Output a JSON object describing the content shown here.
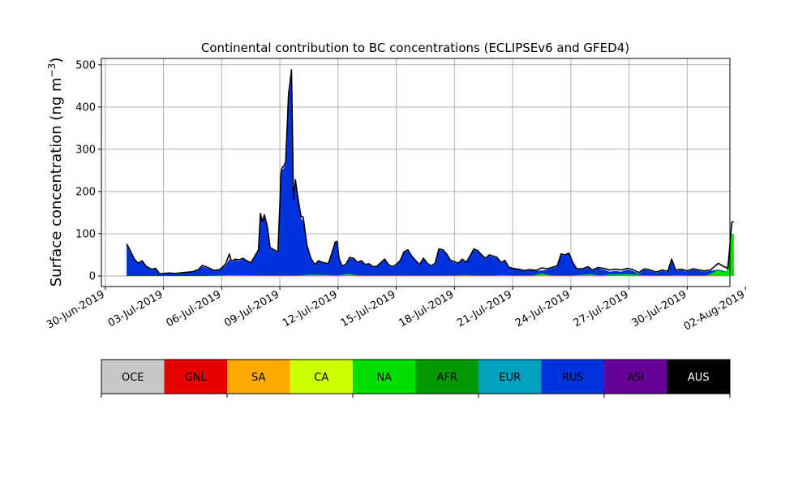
{
  "chart_data": {
    "type": "area",
    "title": "Continental contribution to BC concentrations (ECLIPSEv6 and GFED4)",
    "ylabel": "Surface concentration (ng m",
    "ylabel_exp": "−3",
    "ylabel_suffix": ")",
    "xlim": [
      -0.2,
      32.2
    ],
    "ylim": [
      -25,
      515
    ],
    "yticks": [
      0,
      100,
      200,
      300,
      400,
      500
    ],
    "xticks": [
      {
        "x": 0,
        "label": "30-Jun-2019"
      },
      {
        "x": 3,
        "label": "03-Jul-2019"
      },
      {
        "x": 6,
        "label": "06-Jul-2019"
      },
      {
        "x": 9,
        "label": "09-Jul-2019"
      },
      {
        "x": 12,
        "label": "12-Jul-2019"
      },
      {
        "x": 15,
        "label": "15-Jul-2019"
      },
      {
        "x": 18,
        "label": "18-Jul-2019"
      },
      {
        "x": 21,
        "label": "21-Jul-2019"
      },
      {
        "x": 24,
        "label": "24-Jul-2019"
      },
      {
        "x": 27,
        "label": "27-Jul-2019"
      },
      {
        "x": 30,
        "label": "30-Jul-2019"
      },
      {
        "x": 33,
        "label": "02-Aug-2019"
      }
    ],
    "grid": true,
    "total_line_color": "#000000",
    "series": [
      {
        "name": "NA",
        "color": "#00e000",
        "points": [
          [
            1.1,
            0
          ],
          [
            3,
            0
          ],
          [
            5,
            0
          ],
          [
            6.5,
            2
          ],
          [
            8,
            1
          ],
          [
            9,
            1
          ],
          [
            10,
            1
          ],
          [
            10.5,
            3
          ],
          [
            11,
            3
          ],
          [
            12,
            1
          ],
          [
            12.5,
            5
          ],
          [
            13,
            1
          ],
          [
            15,
            1
          ],
          [
            17,
            1
          ],
          [
            18,
            1
          ],
          [
            18.5,
            2
          ],
          [
            19,
            1
          ],
          [
            20,
            1
          ],
          [
            20.5,
            2
          ],
          [
            21,
            1
          ],
          [
            22,
            1
          ],
          [
            22.5,
            6
          ],
          [
            23,
            1
          ],
          [
            24,
            1
          ],
          [
            25,
            4
          ],
          [
            25.5,
            1
          ],
          [
            26,
            3
          ],
          [
            27,
            4
          ],
          [
            28,
            1
          ],
          [
            29,
            1
          ],
          [
            29.5,
            2
          ],
          [
            30,
            1
          ],
          [
            31,
            1
          ],
          [
            31.6,
            14
          ],
          [
            32,
            8
          ],
          [
            32.3,
            100
          ],
          [
            32.4,
            100
          ]
        ]
      },
      {
        "name": "RUS",
        "color": "#0033dd",
        "points": [
          [
            1.1,
            75
          ],
          [
            1.2,
            65
          ],
          [
            1.5,
            38
          ],
          [
            1.7,
            30
          ],
          [
            1.9,
            35
          ],
          [
            2.1,
            22
          ],
          [
            2.4,
            15
          ],
          [
            2.6,
            17
          ],
          [
            2.8,
            4
          ],
          [
            3,
            5
          ],
          [
            3.3,
            7
          ],
          [
            3.6,
            5
          ],
          [
            4,
            7
          ],
          [
            4.5,
            10
          ],
          [
            4.8,
            15
          ],
          [
            5,
            22
          ],
          [
            5.3,
            18
          ],
          [
            5.6,
            12
          ],
          [
            5.9,
            14
          ],
          [
            6.2,
            25
          ],
          [
            6.4,
            40
          ],
          [
            6.5,
            32
          ],
          [
            6.7,
            38
          ],
          [
            6.9,
            35
          ],
          [
            7.1,
            40
          ],
          [
            7.3,
            35
          ],
          [
            7.5,
            30
          ],
          [
            7.7,
            45
          ],
          [
            7.9,
            60
          ],
          [
            8,
            140
          ],
          [
            8.1,
            125
          ],
          [
            8.2,
            140
          ],
          [
            8.35,
            115
          ],
          [
            8.5,
            65
          ],
          [
            8.7,
            60
          ],
          [
            8.9,
            55
          ],
          [
            9,
            165
          ],
          [
            9.05,
            235
          ],
          [
            9.1,
            250
          ],
          [
            9.2,
            255
          ],
          [
            9.3,
            265
          ],
          [
            9.45,
            420
          ],
          [
            9.52,
            445
          ],
          [
            9.6,
            482
          ],
          [
            9.65,
            340
          ],
          [
            9.7,
            175
          ],
          [
            9.8,
            220
          ],
          [
            9.9,
            190
          ],
          [
            10,
            160
          ],
          [
            10.1,
            135
          ],
          [
            10.2,
            130
          ],
          [
            10.4,
            70
          ],
          [
            10.6,
            40
          ],
          [
            10.8,
            25
          ],
          [
            11,
            35
          ],
          [
            11.2,
            30
          ],
          [
            11.5,
            28
          ],
          [
            11.7,
            55
          ],
          [
            11.85,
            78
          ],
          [
            11.95,
            80
          ],
          [
            12.05,
            40
          ],
          [
            12.2,
            22
          ],
          [
            12.4,
            25
          ],
          [
            12.6,
            42
          ],
          [
            12.8,
            40
          ],
          [
            13,
            30
          ],
          [
            13.2,
            35
          ],
          [
            13.4,
            25
          ],
          [
            13.6,
            28
          ],
          [
            13.8,
            20
          ],
          [
            14,
            22
          ],
          [
            14.2,
            30
          ],
          [
            14.4,
            38
          ],
          [
            14.6,
            25
          ],
          [
            14.8,
            20
          ],
          [
            15,
            25
          ],
          [
            15.2,
            35
          ],
          [
            15.4,
            55
          ],
          [
            15.6,
            60
          ],
          [
            15.8,
            45
          ],
          [
            16,
            35
          ],
          [
            16.2,
            25
          ],
          [
            16.4,
            40
          ],
          [
            16.6,
            28
          ],
          [
            16.8,
            22
          ],
          [
            17,
            28
          ],
          [
            17.2,
            62
          ],
          [
            17.4,
            60
          ],
          [
            17.6,
            50
          ],
          [
            17.8,
            35
          ],
          [
            18,
            32
          ],
          [
            18.2,
            28
          ],
          [
            18.4,
            38
          ],
          [
            18.6,
            30
          ],
          [
            18.8,
            45
          ],
          [
            19,
            62
          ],
          [
            19.2,
            58
          ],
          [
            19.4,
            48
          ],
          [
            19.6,
            40
          ],
          [
            19.8,
            48
          ],
          [
            20,
            45
          ],
          [
            20.2,
            42
          ],
          [
            20.4,
            30
          ],
          [
            20.5,
            32
          ],
          [
            20.6,
            35
          ],
          [
            20.8,
            20
          ],
          [
            21,
            17
          ],
          [
            21.3,
            15
          ],
          [
            21.6,
            12
          ],
          [
            21.9,
            14
          ],
          [
            22.2,
            12
          ],
          [
            22.5,
            13
          ],
          [
            22.8,
            15
          ],
          [
            23,
            18
          ],
          [
            23.3,
            22
          ],
          [
            23.5,
            50
          ],
          [
            23.7,
            48
          ],
          [
            23.9,
            52
          ],
          [
            24.1,
            30
          ],
          [
            24.3,
            15
          ],
          [
            24.6,
            15
          ],
          [
            24.9,
            20
          ],
          [
            25.1,
            12
          ],
          [
            25.4,
            18
          ],
          [
            25.7,
            15
          ],
          [
            26,
            10
          ],
          [
            26.3,
            12
          ],
          [
            26.6,
            10
          ],
          [
            26.9,
            15
          ],
          [
            27.2,
            12
          ],
          [
            27.5,
            5
          ],
          [
            27.8,
            15
          ],
          [
            28.1,
            12
          ],
          [
            28.4,
            7
          ],
          [
            28.7,
            12
          ],
          [
            29,
            9
          ],
          [
            29.2,
            35
          ],
          [
            29.4,
            12
          ],
          [
            29.7,
            14
          ],
          [
            30,
            10
          ],
          [
            30.3,
            15
          ],
          [
            30.6,
            12
          ],
          [
            30.9,
            10
          ],
          [
            31.2,
            12
          ],
          [
            31.6,
            15
          ],
          [
            31.9,
            12
          ],
          [
            32.1,
            8
          ],
          [
            32.3,
            20
          ],
          [
            32.4,
            10
          ]
        ]
      }
    ],
    "total_points": [
      [
        1.1,
        76
      ],
      [
        1.2,
        68
      ],
      [
        1.5,
        40
      ],
      [
        1.7,
        30
      ],
      [
        1.9,
        36
      ],
      [
        2.1,
        23
      ],
      [
        2.4,
        16
      ],
      [
        2.6,
        18
      ],
      [
        2.8,
        5
      ],
      [
        3,
        6
      ],
      [
        3.3,
        7
      ],
      [
        3.6,
        6
      ],
      [
        4,
        8
      ],
      [
        4.5,
        10
      ],
      [
        4.8,
        15
      ],
      [
        5,
        25
      ],
      [
        5.3,
        20
      ],
      [
        5.6,
        13
      ],
      [
        5.9,
        15
      ],
      [
        6.2,
        28
      ],
      [
        6.4,
        52
      ],
      [
        6.5,
        35
      ],
      [
        6.7,
        40
      ],
      [
        6.9,
        38
      ],
      [
        7.1,
        42
      ],
      [
        7.3,
        36
      ],
      [
        7.5,
        31
      ],
      [
        7.7,
        46
      ],
      [
        7.9,
        62
      ],
      [
        8,
        148
      ],
      [
        8.1,
        128
      ],
      [
        8.2,
        145
      ],
      [
        8.35,
        118
      ],
      [
        8.5,
        67
      ],
      [
        8.7,
        62
      ],
      [
        8.9,
        57
      ],
      [
        9,
        168
      ],
      [
        9.05,
        240
      ],
      [
        9.1,
        255
      ],
      [
        9.2,
        260
      ],
      [
        9.3,
        270
      ],
      [
        9.45,
        432
      ],
      [
        9.52,
        455
      ],
      [
        9.6,
        488
      ],
      [
        9.65,
        345
      ],
      [
        9.7,
        180
      ],
      [
        9.8,
        228
      ],
      [
        9.9,
        195
      ],
      [
        10,
        165
      ],
      [
        10.1,
        140
      ],
      [
        10.2,
        140
      ],
      [
        10.4,
        72
      ],
      [
        10.6,
        42
      ],
      [
        10.8,
        27
      ],
      [
        11,
        36
      ],
      [
        11.2,
        32
      ],
      [
        11.5,
        29
      ],
      [
        11.7,
        57
      ],
      [
        11.85,
        80
      ],
      [
        11.95,
        82
      ],
      [
        12.05,
        42
      ],
      [
        12.2,
        24
      ],
      [
        12.4,
        27
      ],
      [
        12.6,
        44
      ],
      [
        12.8,
        42
      ],
      [
        13,
        32
      ],
      [
        13.2,
        36
      ],
      [
        13.4,
        27
      ],
      [
        13.6,
        29
      ],
      [
        13.8,
        22
      ],
      [
        14,
        23
      ],
      [
        14.2,
        31
      ],
      [
        14.4,
        40
      ],
      [
        14.6,
        27
      ],
      [
        14.8,
        22
      ],
      [
        15,
        27
      ],
      [
        15.2,
        36
      ],
      [
        15.4,
        57
      ],
      [
        15.6,
        62
      ],
      [
        15.8,
        47
      ],
      [
        16,
        37
      ],
      [
        16.2,
        27
      ],
      [
        16.4,
        42
      ],
      [
        16.6,
        30
      ],
      [
        16.8,
        24
      ],
      [
        17,
        30
      ],
      [
        17.2,
        64
      ],
      [
        17.4,
        62
      ],
      [
        17.6,
        52
      ],
      [
        17.8,
        37
      ],
      [
        18,
        34
      ],
      [
        18.2,
        30
      ],
      [
        18.4,
        40
      ],
      [
        18.6,
        32
      ],
      [
        18.8,
        47
      ],
      [
        19,
        64
      ],
      [
        19.2,
        60
      ],
      [
        19.4,
        50
      ],
      [
        19.6,
        42
      ],
      [
        19.8,
        50
      ],
      [
        20,
        47
      ],
      [
        20.2,
        44
      ],
      [
        20.4,
        32
      ],
      [
        20.5,
        34
      ],
      [
        20.6,
        37
      ],
      [
        20.8,
        21
      ],
      [
        21,
        18
      ],
      [
        21.3,
        16
      ],
      [
        21.6,
        13
      ],
      [
        21.9,
        15
      ],
      [
        22.2,
        13
      ],
      [
        22.5,
        19
      ],
      [
        22.8,
        17
      ],
      [
        23,
        20
      ],
      [
        23.3,
        24
      ],
      [
        23.5,
        52
      ],
      [
        23.7,
        50
      ],
      [
        23.9,
        54
      ],
      [
        24.1,
        32
      ],
      [
        24.3,
        17
      ],
      [
        24.6,
        17
      ],
      [
        24.9,
        22
      ],
      [
        25.1,
        14
      ],
      [
        25.4,
        20
      ],
      [
        25.7,
        18
      ],
      [
        26,
        14
      ],
      [
        26.3,
        16
      ],
      [
        26.6,
        14
      ],
      [
        26.9,
        18
      ],
      [
        27.2,
        15
      ],
      [
        27.5,
        8
      ],
      [
        27.8,
        17
      ],
      [
        28.1,
        14
      ],
      [
        28.4,
        9
      ],
      [
        28.7,
        14
      ],
      [
        29,
        11
      ],
      [
        29.2,
        40
      ],
      [
        29.4,
        14
      ],
      [
        29.7,
        16
      ],
      [
        30,
        12
      ],
      [
        30.3,
        17
      ],
      [
        30.6,
        14
      ],
      [
        30.9,
        12
      ],
      [
        31.2,
        14
      ],
      [
        31.6,
        30
      ],
      [
        31.9,
        22
      ],
      [
        32.1,
        18
      ],
      [
        32.3,
        128
      ],
      [
        32.4,
        128
      ]
    ],
    "legend": [
      {
        "label": "OCE",
        "color": "#c8c8c8",
        "text_color": "#000000"
      },
      {
        "label": "GNL",
        "color": "#e60000",
        "text_color": "#000000"
      },
      {
        "label": "SA",
        "color": "#ffaa00",
        "text_color": "#000000"
      },
      {
        "label": "CA",
        "color": "#ccff00",
        "text_color": "#000000"
      },
      {
        "label": "NA",
        "color": "#00e000",
        "text_color": "#000000"
      },
      {
        "label": "AFR",
        "color": "#009900",
        "text_color": "#000000"
      },
      {
        "label": "EUR",
        "color": "#00a0c0",
        "text_color": "#000000"
      },
      {
        "label": "RUS",
        "color": "#0033dd",
        "text_color": "#000000"
      },
      {
        "label": "ASI",
        "color": "#660099",
        "text_color": "#000000"
      },
      {
        "label": "AUS",
        "color": "#000000",
        "text_color": "#ffffff"
      }
    ]
  }
}
